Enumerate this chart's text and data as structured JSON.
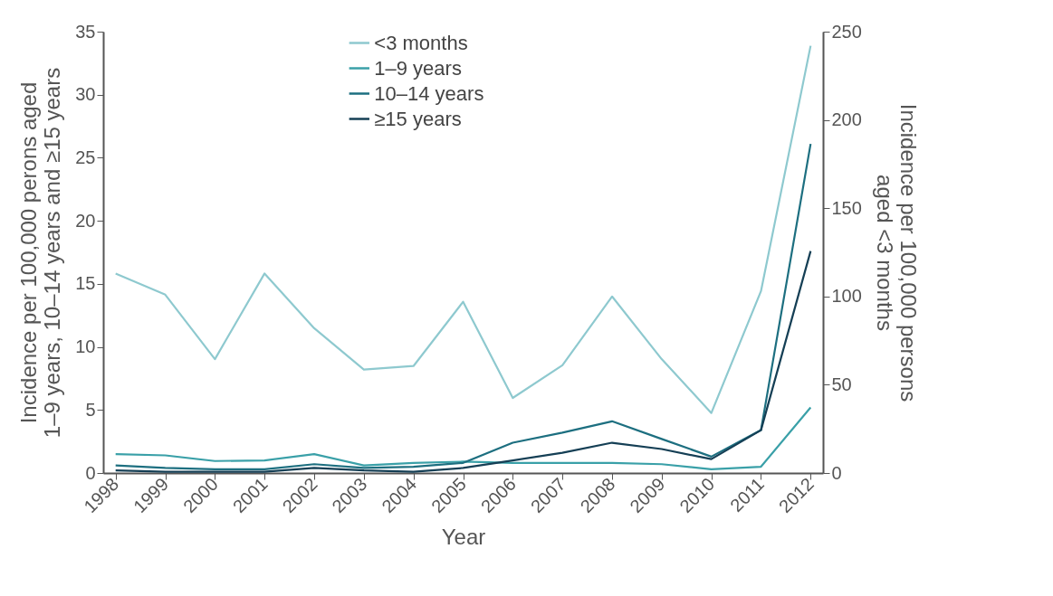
{
  "chart_data": {
    "type": "line",
    "xlabel": "Year",
    "ylabel": "Incidence per 100,000 perons aged\n1–9 years, 10–14 years and ≥15 years",
    "y2label": "Incidence per 100,000 persons\naged <3 months",
    "categories": [
      "1998",
      "1999",
      "2000",
      "2001",
      "2002",
      "2003",
      "2004",
      "2005",
      "2006",
      "2007",
      "2008",
      "2009",
      "2010",
      "2011",
      "2012"
    ],
    "series": [
      {
        "name": "<3 months",
        "color": "#8ec9cf",
        "axis": "y2",
        "values": [
          113,
          101,
          64.5,
          113,
          82,
          58.6,
          60.6,
          97,
          42.5,
          61,
          100,
          64.5,
          34,
          103,
          242
        ]
      },
      {
        "name": "1–9 years",
        "color": "#3aa0a8",
        "values": [
          1.5,
          1.4,
          0.95,
          1.0,
          1.5,
          0.6,
          0.8,
          0.9,
          0.8,
          0.8,
          0.8,
          0.7,
          0.3,
          0.5,
          5.2
        ]
      },
      {
        "name": "10–14 years",
        "color": "#1d6f80",
        "values": [
          0.6,
          0.4,
          0.3,
          0.3,
          0.7,
          0.4,
          0.5,
          0.8,
          2.4,
          3.2,
          4.1,
          2.7,
          1.3,
          3.4,
          26.1
        ]
      },
      {
        "name": "≥15 years",
        "color": "#153f55",
        "values": [
          0.2,
          0.1,
          0.1,
          0.1,
          0.4,
          0.2,
          0.1,
          0.4,
          1.0,
          1.6,
          2.4,
          1.9,
          1.1,
          3.4,
          17.6
        ]
      }
    ],
    "ylim": [
      0,
      35
    ],
    "yticks": [
      0,
      5,
      10,
      15,
      20,
      25,
      30,
      35
    ],
    "y2lim": [
      0,
      250
    ],
    "y2ticks": [
      0,
      50,
      100,
      150,
      200,
      250
    ],
    "grid": false,
    "legend": "top",
    "line_style": "solid",
    "marker": "none"
  }
}
